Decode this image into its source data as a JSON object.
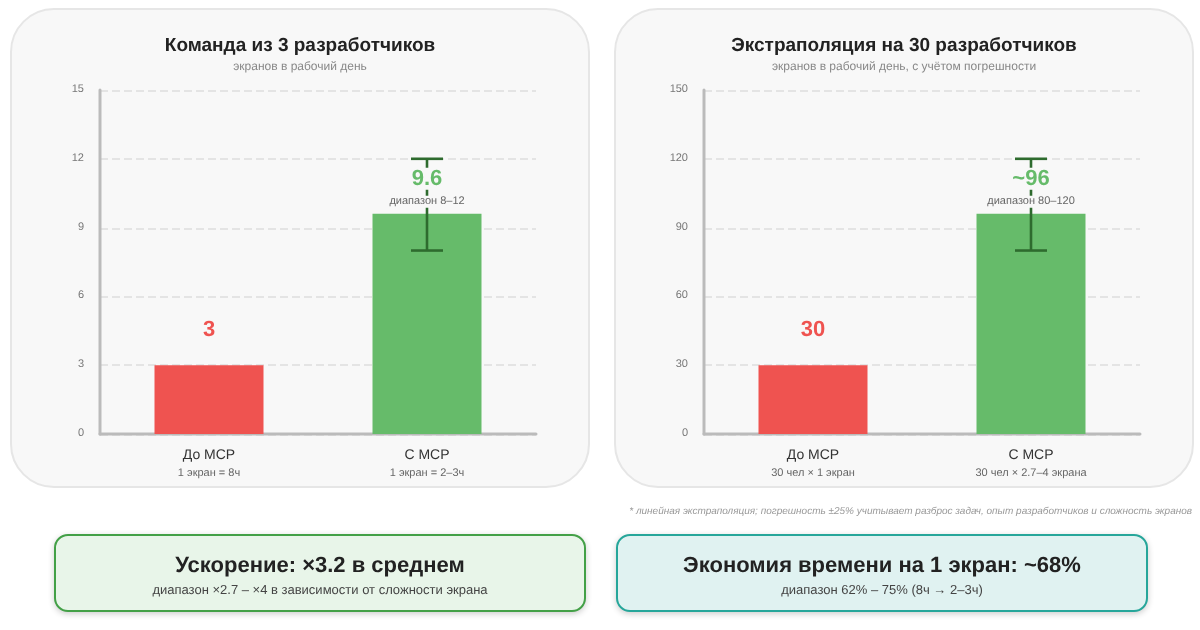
{
  "chart_data": [
    {
      "type": "bar",
      "title": "Команда из 3 разработчиков",
      "subtitle": "экранов в рабочий день",
      "categories": [
        "До МСР\n1 экран = 8ч",
        "С МСР\n1 экран = 2–3ч"
      ],
      "values": [
        3,
        9.6
      ],
      "colors": [
        "#ef5350",
        "#66bb6a"
      ],
      "errors": [
        null,
        [
          8,
          12
        ]
      ],
      "value_labels": [
        "3",
        "9.6"
      ],
      "annotations": [
        {
          "text": "диапазон 8–12",
          "x": "С МСР\n1 экран = 2–3ч",
          "y": 9.6
        }
      ],
      "ylim": [
        0,
        15
      ],
      "yticks": [
        0,
        3,
        6,
        9,
        12,
        15
      ],
      "grid": "y"
    },
    {
      "type": "bar",
      "title": "Экстраполяция на 30 разработчиков",
      "subtitle": "экранов в рабочий день, с учётом погрешности",
      "categories": [
        "До МСР\n30 чел × 1 экран",
        "С МСР\n30 чел × 2.7–4 экрана"
      ],
      "values": [
        30,
        96
      ],
      "colors": [
        "#ef5350",
        "#66bb6a"
      ],
      "errors": [
        null,
        [
          80,
          120
        ]
      ],
      "value_labels": [
        "30",
        "~96"
      ],
      "annotations": [
        {
          "text": "диапазон 80–120",
          "x": "С МСР\n30 чел × 2.7–4 экрана",
          "y": 96
        },
        "* линейная экстраполяция; погрешность ±25% учитывает разброс задач, опыт разработчиков и сложность экранов"
      ],
      "ylim": [
        0,
        150
      ],
      "yticks": [
        0,
        30,
        60,
        90,
        120,
        150
      ],
      "grid": "y"
    },
    {
      "type": "other",
      "title": "Ускорение: ×3.2 в среднем",
      "subtitle": "диапазон ×2.7 – ×4 в зависимости от сложности экрана"
    },
    {
      "type": "other",
      "title": "Экономия времени на 1 экран: ~68%",
      "subtitle": "диапазон 62% – 75% (8ч → 2–3ч)"
    }
  ]
}
